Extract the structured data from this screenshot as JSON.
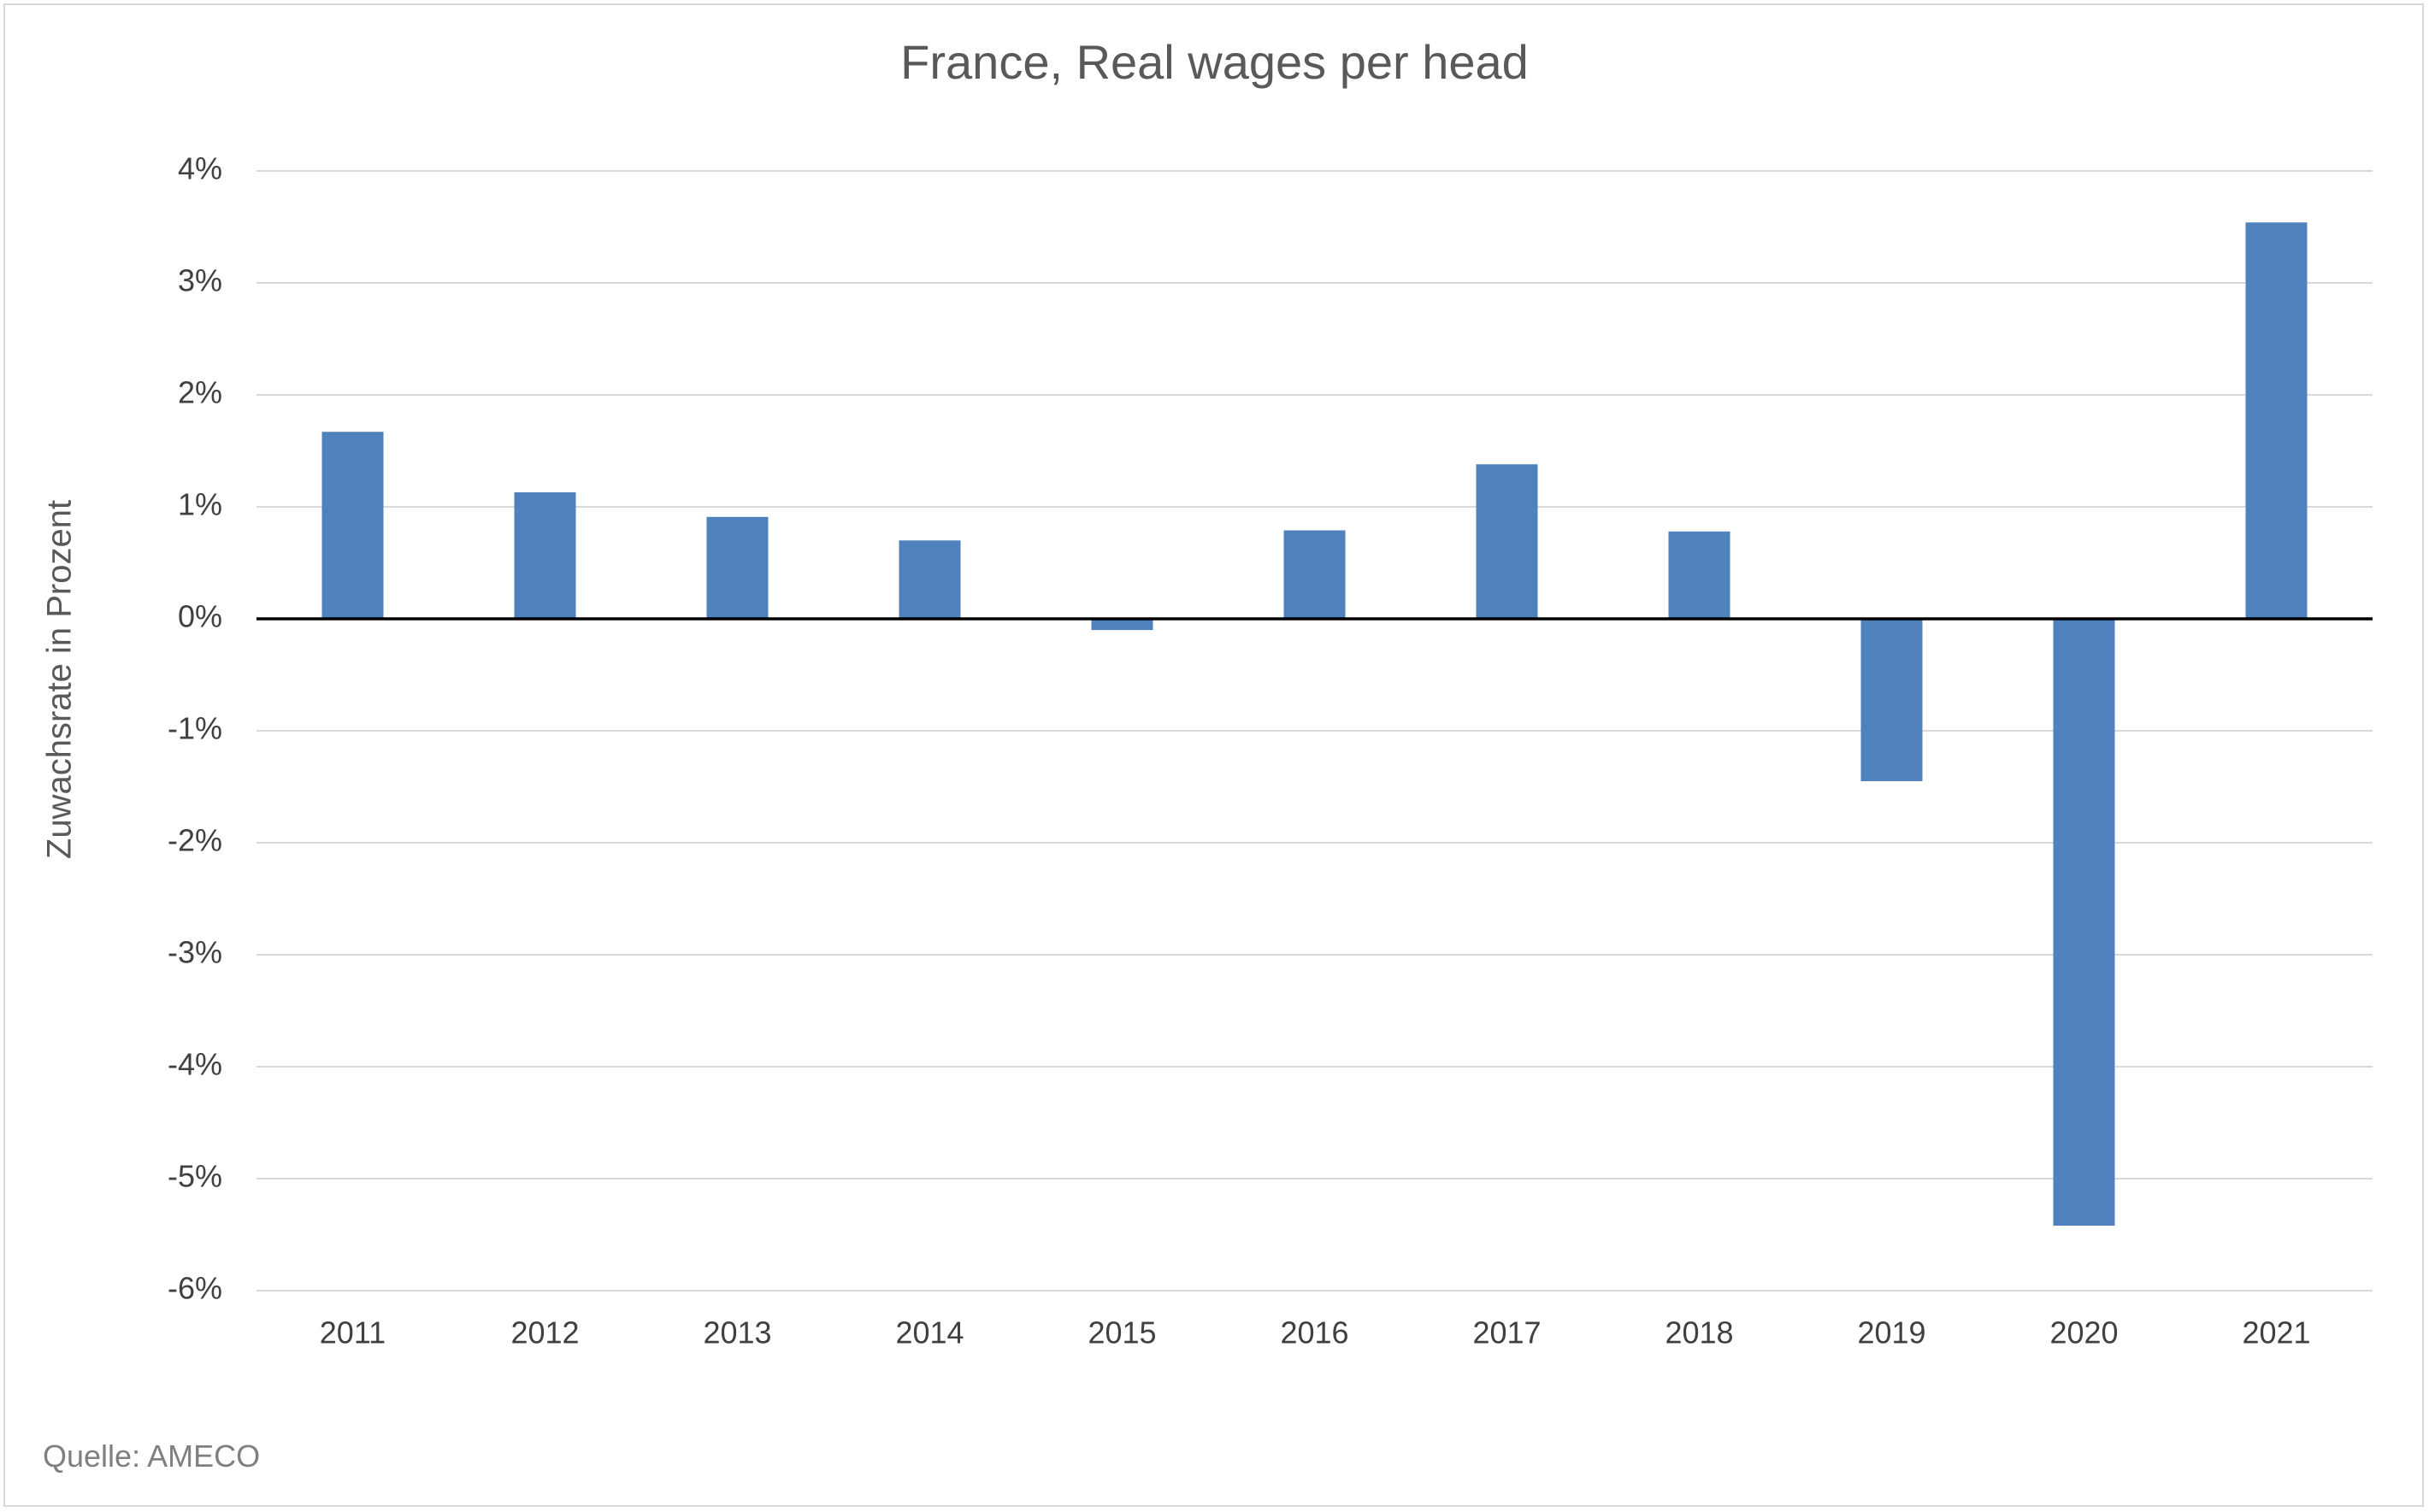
{
  "chart_data": {
    "type": "bar",
    "title": "France, Real wages per head",
    "xlabel": "",
    "ylabel": "Zuwachsrate in Prozent",
    "source": "Quelle: AMECO",
    "categories": [
      "2011",
      "2012",
      "2013",
      "2014",
      "2015",
      "2016",
      "2017",
      "2018",
      "2019",
      "2020",
      "2021"
    ],
    "values": [
      1.67,
      1.13,
      0.91,
      0.7,
      -0.1,
      0.79,
      1.38,
      0.78,
      -1.45,
      -5.42,
      3.54
    ],
    "ylim": [
      -6,
      4
    ],
    "yticks": [
      4,
      3,
      2,
      1,
      0,
      -1,
      -2,
      -3,
      -4,
      -5,
      -6
    ],
    "ytick_labels": [
      "4%",
      "3%",
      "2%",
      "1%",
      "0%",
      "-1%",
      "-2%",
      "-3%",
      "-4%",
      "-5%",
      "-6%"
    ],
    "grid": true,
    "legend": "none",
    "colors": {
      "bar": "#4f81bd",
      "grid": "#d9d9d9",
      "zero_line": "#000000"
    }
  }
}
